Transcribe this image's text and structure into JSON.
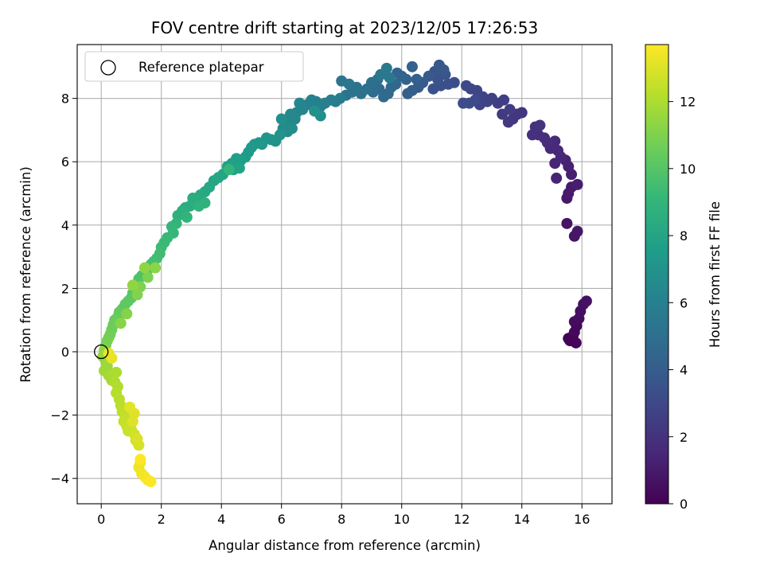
{
  "chart_data": {
    "type": "scatter",
    "title": "FOV centre drift starting at 2023/12/05 17:26:53",
    "xlabel": "Angular distance from reference (arcmin)",
    "ylabel": "Rotation from reference (arcmin)",
    "xlim": [
      -0.8,
      17.0
    ],
    "ylim": [
      -4.8,
      9.7
    ],
    "xticks": [
      0,
      2,
      4,
      6,
      8,
      10,
      12,
      14,
      16
    ],
    "yticks": [
      -4,
      -2,
      0,
      2,
      4,
      6,
      8
    ],
    "grid": true,
    "legend": {
      "placement": "upper-left",
      "entries": [
        "Reference platepar"
      ]
    },
    "reference_point": {
      "x": 0,
      "y": 0
    },
    "colorbar": {
      "label": "Hours from first FF file",
      "range": [
        0,
        13.7
      ],
      "ticks": [
        0,
        2,
        4,
        6,
        8,
        10,
        12
      ],
      "colormap": "viridis",
      "colors": [
        "#440154",
        "#482878",
        "#3e4989",
        "#31688e",
        "#26828e",
        "#1f9e89",
        "#35b779",
        "#6ece58",
        "#b5de2b",
        "#fde725"
      ]
    },
    "series": [
      {
        "points": [
          [
            15.55,
            0.42
          ],
          [
            15.6,
            0.35
          ],
          [
            15.7,
            0.5
          ],
          [
            15.8,
            0.28
          ],
          [
            15.75,
            0.62
          ],
          [
            15.82,
            0.82
          ],
          [
            15.75,
            0.95
          ],
          [
            15.9,
            1.05
          ],
          [
            15.95,
            1.28
          ],
          [
            16.05,
            1.5
          ],
          [
            16.15,
            1.6
          ],
          [
            15.5,
            4.05
          ],
          [
            15.75,
            3.65
          ],
          [
            15.85,
            3.8
          ],
          [
            15.5,
            4.85
          ],
          [
            15.55,
            5.0
          ],
          [
            15.65,
            5.2
          ],
          [
            15.85,
            5.28
          ],
          [
            15.65,
            5.6
          ],
          [
            15.55,
            5.85
          ],
          [
            15.45,
            6.05
          ],
          [
            15.15,
            5.48
          ],
          [
            15.1,
            5.95
          ],
          [
            15.3,
            6.15
          ],
          [
            15.2,
            6.35
          ],
          [
            14.95,
            6.42
          ],
          [
            15.1,
            6.65
          ],
          [
            14.85,
            6.6
          ],
          [
            14.75,
            6.75
          ],
          [
            14.55,
            6.85
          ],
          [
            14.35,
            6.85
          ],
          [
            14.45,
            7.1
          ],
          [
            14.6,
            7.15
          ],
          [
            14.0,
            7.55
          ],
          [
            13.85,
            7.5
          ],
          [
            13.7,
            7.35
          ],
          [
            13.55,
            7.25
          ],
          [
            13.35,
            7.5
          ],
          [
            13.6,
            7.65
          ],
          [
            13.2,
            7.85
          ],
          [
            13.4,
            7.95
          ],
          [
            13.0,
            8.0
          ],
          [
            12.85,
            7.9
          ],
          [
            12.6,
            7.8
          ],
          [
            12.7,
            8.05
          ],
          [
            12.5,
            8.25
          ],
          [
            12.3,
            8.3
          ],
          [
            12.15,
            8.4
          ],
          [
            12.45,
            7.95
          ],
          [
            12.25,
            7.85
          ],
          [
            12.05,
            7.85
          ],
          [
            11.75,
            8.5
          ],
          [
            11.55,
            8.45
          ],
          [
            11.3,
            8.4
          ],
          [
            11.05,
            8.3
          ],
          [
            11.2,
            8.6
          ],
          [
            11.45,
            8.75
          ],
          [
            11.1,
            8.85
          ],
          [
            11.25,
            9.05
          ],
          [
            11.4,
            8.9
          ],
          [
            10.9,
            8.7
          ],
          [
            10.7,
            8.5
          ],
          [
            10.55,
            8.35
          ],
          [
            10.35,
            8.25
          ],
          [
            10.2,
            8.15
          ],
          [
            10.5,
            8.6
          ],
          [
            10.35,
            9.0
          ],
          [
            10.15,
            8.6
          ],
          [
            10.0,
            8.7
          ],
          [
            9.85,
            8.8
          ],
          [
            9.8,
            8.45
          ],
          [
            9.65,
            8.35
          ],
          [
            9.55,
            8.15
          ],
          [
            9.4,
            8.05
          ],
          [
            9.25,
            8.3
          ],
          [
            9.05,
            8.2
          ],
          [
            9.2,
            8.6
          ],
          [
            9.0,
            8.5
          ],
          [
            8.85,
            8.3
          ],
          [
            8.65,
            8.15
          ],
          [
            8.5,
            8.35
          ],
          [
            8.35,
            8.2
          ],
          [
            8.15,
            8.1
          ],
          [
            8.0,
            8.55
          ],
          [
            8.25,
            8.45
          ],
          [
            9.3,
            8.75
          ],
          [
            9.6,
            8.65
          ],
          [
            9.5,
            8.95
          ],
          [
            7.95,
            8.0
          ],
          [
            7.8,
            7.9
          ],
          [
            7.65,
            7.95
          ],
          [
            7.45,
            7.85
          ],
          [
            7.3,
            7.75
          ],
          [
            7.15,
            7.9
          ],
          [
            7.0,
            7.95
          ],
          [
            6.85,
            7.8
          ],
          [
            6.7,
            7.65
          ],
          [
            6.6,
            7.85
          ],
          [
            6.5,
            7.55
          ],
          [
            6.45,
            7.35
          ],
          [
            6.3,
            7.5
          ],
          [
            6.15,
            7.25
          ],
          [
            6.05,
            7.05
          ],
          [
            6.2,
            6.95
          ],
          [
            6.35,
            7.05
          ],
          [
            6.0,
            7.35
          ],
          [
            7.3,
            7.45
          ],
          [
            7.1,
            7.6
          ],
          [
            5.95,
            6.85
          ],
          [
            5.8,
            6.65
          ],
          [
            5.65,
            6.7
          ],
          [
            5.5,
            6.75
          ],
          [
            5.35,
            6.55
          ],
          [
            5.25,
            6.6
          ],
          [
            5.1,
            6.55
          ],
          [
            5.0,
            6.45
          ],
          [
            4.9,
            6.3
          ],
          [
            4.8,
            6.15
          ],
          [
            4.65,
            6.05
          ],
          [
            4.5,
            6.1
          ],
          [
            4.35,
            5.95
          ],
          [
            4.2,
            5.85
          ],
          [
            4.4,
            5.75
          ],
          [
            4.6,
            5.8
          ],
          [
            4.05,
            5.6
          ],
          [
            3.9,
            5.5
          ],
          [
            3.75,
            5.4
          ],
          [
            3.6,
            5.2
          ],
          [
            3.45,
            5.05
          ],
          [
            3.3,
            4.95
          ],
          [
            3.2,
            4.8
          ],
          [
            3.05,
            4.85
          ],
          [
            2.95,
            4.6
          ],
          [
            2.8,
            4.55
          ],
          [
            2.7,
            4.45
          ],
          [
            2.55,
            4.3
          ],
          [
            3.45,
            4.7
          ],
          [
            3.25,
            4.6
          ],
          [
            2.85,
            4.25
          ],
          [
            4.25,
            5.75
          ],
          [
            2.5,
            4.05
          ],
          [
            2.35,
            3.95
          ],
          [
            2.4,
            3.75
          ],
          [
            2.2,
            3.6
          ],
          [
            2.1,
            3.45
          ],
          [
            2.0,
            3.3
          ],
          [
            1.95,
            3.1
          ],
          [
            1.85,
            2.95
          ],
          [
            1.75,
            2.85
          ],
          [
            1.65,
            2.75
          ],
          [
            1.55,
            2.6
          ],
          [
            1.45,
            2.5
          ],
          [
            1.35,
            2.4
          ],
          [
            1.25,
            2.3
          ],
          [
            1.2,
            2.15
          ],
          [
            1.1,
            2.0
          ],
          [
            1.05,
            1.85
          ],
          [
            1.0,
            1.7
          ],
          [
            0.9,
            1.6
          ],
          [
            0.8,
            1.5
          ],
          [
            0.7,
            1.35
          ],
          [
            0.6,
            1.25
          ],
          [
            0.55,
            1.1
          ],
          [
            0.45,
            1.0
          ],
          [
            0.4,
            0.85
          ],
          [
            0.35,
            0.7
          ],
          [
            0.3,
            0.55
          ],
          [
            0.25,
            0.45
          ],
          [
            0.2,
            0.35
          ],
          [
            0.15,
            0.2
          ],
          [
            1.55,
            2.35
          ],
          [
            1.3,
            2.05
          ],
          [
            1.2,
            1.8
          ],
          [
            0.85,
            1.2
          ],
          [
            0.65,
            0.9
          ],
          [
            1.8,
            2.65
          ],
          [
            1.45,
            2.65
          ],
          [
            1.05,
            2.1
          ],
          [
            0.1,
            0.05
          ],
          [
            0.05,
            -0.15
          ],
          [
            0.15,
            -0.3
          ],
          [
            0.2,
            -0.45
          ],
          [
            0.1,
            -0.6
          ],
          [
            0.25,
            -0.75
          ],
          [
            0.35,
            -0.9
          ],
          [
            0.4,
            -0.7
          ],
          [
            0.5,
            -0.65
          ],
          [
            0.45,
            -0.95
          ],
          [
            0.55,
            -1.1
          ],
          [
            0.5,
            -1.3
          ],
          [
            0.6,
            -1.5
          ],
          [
            0.65,
            -1.7
          ],
          [
            0.7,
            -1.9
          ],
          [
            0.8,
            -2.0
          ],
          [
            0.75,
            -2.2
          ],
          [
            0.85,
            -2.35
          ],
          [
            0.9,
            -2.5
          ],
          [
            1.0,
            -2.45
          ],
          [
            1.1,
            -2.6
          ],
          [
            1.15,
            -2.8
          ],
          [
            1.25,
            -2.95
          ],
          [
            1.2,
            -2.75
          ],
          [
            1.05,
            -2.2
          ],
          [
            1.1,
            -1.95
          ],
          [
            0.95,
            -1.75
          ],
          [
            0.35,
            -0.2
          ],
          [
            0.25,
            -0.05
          ],
          [
            1.3,
            -3.5
          ],
          [
            1.25,
            -3.65
          ],
          [
            1.35,
            -3.85
          ],
          [
            1.45,
            -3.95
          ],
          [
            1.55,
            -4.05
          ],
          [
            1.65,
            -4.1
          ],
          [
            1.3,
            -3.4
          ]
        ]
      }
    ]
  }
}
